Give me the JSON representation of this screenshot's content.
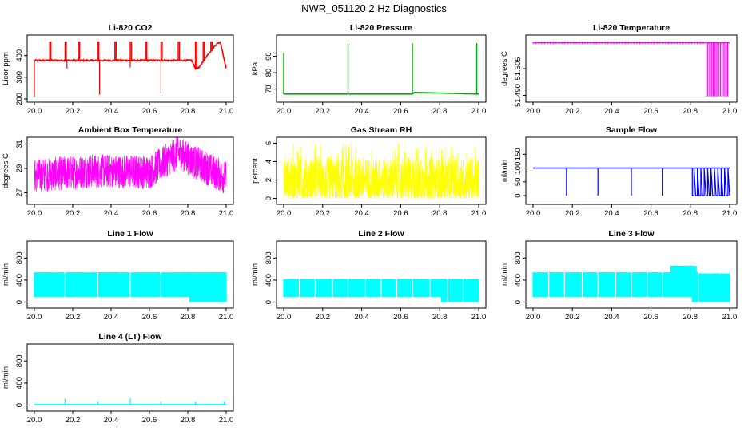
{
  "figure_title": "NWR_051120  2 Hz Diagnostics",
  "chart_data": [
    {
      "type": "line",
      "title": "Li-820 CO2",
      "ylabel": "Licor ppm",
      "color": "#ff0000",
      "xlim": [
        20.0,
        21.0
      ],
      "ylim": [
        200,
        480
      ],
      "x_ticks": [
        "20.0",
        "20.2",
        "20.4",
        "20.6",
        "20.8",
        "21.0"
      ],
      "y_ticks": [
        200,
        300,
        400
      ],
      "series": [
        {
          "baseline": [
            [
              20.0,
              378
            ],
            [
              20.82,
              378
            ],
            [
              20.84,
              340
            ],
            [
              20.86,
              345
            ],
            [
              20.88,
              375
            ],
            [
              20.9,
              400
            ],
            [
              20.95,
              455
            ],
            [
              20.97,
              462
            ],
            [
              21.0,
              340
            ]
          ],
          "spikes_up": [
            20.08,
            20.16,
            20.23,
            20.33,
            20.42,
            20.5,
            20.58,
            20.66,
            20.75,
            20.84,
            20.88,
            20.92
          ],
          "spikes_up_to": 465,
          "spikes_down": [
            [
              20.0,
              210
            ],
            [
              20.34,
              220
            ],
            [
              20.66,
              225
            ],
            [
              20.17,
              340
            ],
            [
              20.5,
              345
            ]
          ]
        }
      ]
    },
    {
      "type": "line",
      "title": "Li-820 Pressure",
      "ylabel": "kPa",
      "color": "#00aa00",
      "xlim": [
        20.0,
        21.0
      ],
      "ylim": [
        64,
        101
      ],
      "x_ticks": [
        "20.0",
        "20.2",
        "20.4",
        "20.6",
        "20.8",
        "21.0"
      ],
      "y_ticks": [
        70,
        80,
        90
      ],
      "series": [
        {
          "baseline": [
            [
              20.0,
              67
            ],
            [
              20.66,
              67
            ],
            [
              20.67,
              68
            ],
            [
              20.84,
              67.5
            ],
            [
              21.0,
              67
            ]
          ],
          "spikes_up": [
            [
              20.0,
              92
            ],
            [
              20.33,
              98
            ],
            [
              20.66,
              98
            ],
            [
              20.99,
              98
            ]
          ]
        }
      ]
    },
    {
      "type": "line",
      "title": "Li-820 Temperature",
      "ylabel": "degrees C",
      "color": "#ff00ff",
      "xlim": [
        20.0,
        21.0
      ],
      "ylim": [
        51.488,
        51.522
      ],
      "x_ticks": [
        "20.0",
        "20.2",
        "20.4",
        "20.6",
        "20.8",
        "21.0"
      ],
      "y_ticks": [
        "51.490",
        "51.505"
      ],
      "series": [
        {
          "baseline": [
            [
              20.0,
              51.5195
            ],
            [
              21.0,
              51.5195
            ]
          ],
          "drops_from": 20.88,
          "drops_to_value": 51.4895
        }
      ]
    },
    {
      "type": "line",
      "title": "Ambient Box Temperature",
      "ylabel": "degrees C",
      "color": "#ff00ff",
      "xlim": [
        20.0,
        21.0
      ],
      "ylim": [
        26.3,
        31.3
      ],
      "x_ticks": [
        "20.0",
        "20.2",
        "20.4",
        "20.6",
        "20.8",
        "21.0"
      ],
      "y_ticks": [
        27,
        29,
        31
      ],
      "series": [
        {
          "trend": [
            [
              20.0,
              28.4
            ],
            [
              20.3,
              28.8
            ],
            [
              20.6,
              28.7
            ],
            [
              20.75,
              30.3
            ],
            [
              20.85,
              29.4
            ],
            [
              21.0,
              28.2
            ]
          ],
          "noise_amplitude": 1.4
        }
      ]
    },
    {
      "type": "line",
      "title": "Gas Stream RH",
      "ylabel": "percent",
      "color": "#ffff00",
      "xlim": [
        20.0,
        21.0
      ],
      "ylim": [
        -0.3,
        6.3
      ],
      "x_ticks": [
        "20.0",
        "20.2",
        "20.4",
        "20.6",
        "20.8",
        "21.0"
      ],
      "y_ticks": [
        0,
        2,
        4,
        6
      ],
      "series": [
        {
          "trend": [
            [
              20.0,
              1.8
            ],
            [
              21.0,
              1.8
            ]
          ],
          "range": [
            0,
            6
          ]
        }
      ]
    },
    {
      "type": "line",
      "title": "Sample Flow",
      "ylabel": "ml/min",
      "color": "#0000ff",
      "xlim": [
        20.0,
        21.0
      ],
      "ylim": [
        -20,
        200
      ],
      "x_ticks": [
        "20.0",
        "20.2",
        "20.4",
        "20.6",
        "20.8",
        "21.0"
      ],
      "y_ticks": [
        0,
        50,
        100,
        150
      ],
      "series": [
        {
          "baseline": [
            [
              20.0,
              100
            ],
            [
              20.81,
              100
            ]
          ],
          "drops_to_zero": [
            20.17,
            20.33,
            20.5,
            20.66
          ],
          "oscillation_from": 20.81,
          "oscillation_between": [
            0,
            100
          ]
        }
      ]
    },
    {
      "type": "area",
      "title": "Line 1 Flow",
      "ylabel": "ml/min",
      "color": "#00ffff",
      "xlim": [
        20.0,
        21.0
      ],
      "ylim": [
        -50,
        1050
      ],
      "x_ticks": [
        "20.0",
        "20.2",
        "20.4",
        "20.6",
        "20.8",
        "21.0"
      ],
      "y_ticks": [
        0,
        400,
        800
      ],
      "series": [
        {
          "top": 540,
          "bottom": 90,
          "gaps": [
            20.16,
            20.33,
            20.5,
            20.66
          ],
          "bottom_drop": [
            [
              20.81,
              0
            ],
            [
              21.0,
              0
            ]
          ]
        }
      ]
    },
    {
      "type": "area",
      "title": "Line 2 Flow",
      "ylabel": "ml/min",
      "color": "#00ffff",
      "xlim": [
        20.0,
        21.0
      ],
      "ylim": [
        -50,
        1050
      ],
      "x_ticks": [
        "20.0",
        "20.2",
        "20.4",
        "20.6",
        "20.8",
        "21.0"
      ],
      "y_ticks": [
        0,
        400,
        800
      ],
      "series": [
        {
          "top": 420,
          "bottom": 90,
          "gaps": [
            20.08,
            20.16,
            20.25,
            20.33,
            20.42,
            20.5,
            20.58,
            20.66,
            20.75,
            20.84,
            20.92
          ],
          "bottom_drop": [
            [
              20.81,
              0
            ],
            [
              21.0,
              0
            ]
          ]
        }
      ]
    },
    {
      "type": "area",
      "title": "Line 3 Flow",
      "ylabel": "ml/min",
      "color": "#00ffff",
      "xlim": [
        20.0,
        21.0
      ],
      "ylim": [
        -50,
        1050
      ],
      "x_ticks": [
        "20.0",
        "20.2",
        "20.4",
        "20.6",
        "20.8",
        "21.0"
      ],
      "y_ticks": [
        0,
        400,
        800
      ],
      "series": [
        {
          "top": 540,
          "bottom": 90,
          "gaps": [
            20.08,
            20.16,
            20.25,
            20.33,
            20.42,
            20.5,
            20.58,
            20.66,
            20.84
          ],
          "top_segments": [
            [
              20.7,
              20.83,
              660
            ],
            [
              20.84,
              21.0,
              520
            ]
          ],
          "bottom_drop": [
            [
              20.81,
              0
            ],
            [
              21.0,
              0
            ]
          ]
        }
      ]
    },
    {
      "type": "line",
      "title": "Line 4 (LT) Flow",
      "ylabel": "ml/min",
      "color": "#00ffff",
      "xlim": [
        20.0,
        21.0
      ],
      "ylim": [
        -50,
        1050
      ],
      "x_ticks": [
        "20.0",
        "20.2",
        "20.4",
        "20.6",
        "20.8",
        "21.0"
      ],
      "y_ticks": [
        0,
        400,
        800
      ],
      "series": [
        {
          "baseline": [
            [
              20.0,
              10
            ],
            [
              21.0,
              10
            ]
          ],
          "spikes_up": [
            [
              20.16,
              120
            ],
            [
              20.33,
              60
            ],
            [
              20.5,
              120
            ],
            [
              20.66,
              60
            ],
            [
              20.84,
              60
            ],
            [
              20.99,
              60
            ]
          ]
        }
      ]
    }
  ]
}
